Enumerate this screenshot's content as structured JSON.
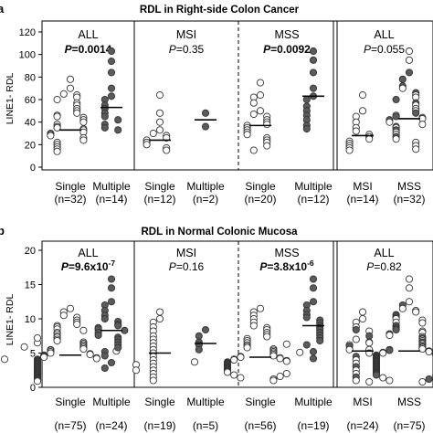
{
  "chart_data": [
    {
      "type": "scatter",
      "panel_label": "a",
      "title": "RDL in Right-side Colon Cancer",
      "ylabel": "LINE1- RDL",
      "ylim": [
        0,
        120
      ],
      "yticks": [
        0,
        20,
        40,
        60,
        80,
        100,
        120
      ],
      "groups": [
        {
          "name": "ALL",
          "p_text": "P=0.0014",
          "p_bold": true,
          "columns": [
            {
              "label": "Single",
              "n": "(n=32)",
              "fill": "white",
              "median": 33,
              "values": [
                78,
                70,
                65,
                64,
                62,
                60,
                57,
                55,
                52,
                50,
                48,
                46,
                45,
                44,
                42,
                40,
                38,
                36,
                35,
                34,
                33,
                31,
                30,
                29,
                28,
                26,
                24,
                22,
                20,
                18,
                16,
                14
              ]
            },
            {
              "label": "Multiple",
              "n": "(n=14)",
              "fill": "dark",
              "median": 53,
              "values": [
                103,
                94,
                84,
                70,
                63,
                60,
                55,
                52,
                48,
                45,
                42,
                38,
                35,
                33
              ]
            }
          ]
        },
        {
          "name": "MSI",
          "p_text": "P=0.35",
          "p_bold": false,
          "columns": [
            {
              "label": "Single",
              "n": "(n=12)",
              "fill": "white",
              "median": 24,
              "values": [
                64,
                48,
                40,
                33,
                30,
                28,
                26,
                24,
                22,
                20,
                17,
                15
              ]
            },
            {
              "label": "Multiple",
              "n": "(n=2)",
              "fill": "dark",
              "median": 42,
              "values": [
                48,
                36
              ]
            }
          ]
        },
        {
          "name": "MSS",
          "p_text": "P=0.0092",
          "p_bold": true,
          "columns": [
            {
              "label": "Single",
              "n": "(n=20)",
              "fill": "white",
              "median": 37,
              "values": [
                75,
                64,
                62,
                57,
                50,
                47,
                45,
                42,
                40,
                38,
                37,
                35,
                33,
                31,
                29,
                26,
                24,
                22,
                19,
                15
              ]
            },
            {
              "label": "Multiple",
              "n": "(n=12)",
              "fill": "dark",
              "median": 63,
              "values": [
                103,
                95,
                84,
                70,
                63,
                60,
                54,
                50,
                46,
                42,
                37,
                34
              ]
            }
          ]
        },
        {
          "name": "ALL",
          "p_text": "P=0.055",
          "p_bold": false,
          "columns": [
            {
              "label": "MSI",
              "n": "(n=14)",
              "fill": "white",
              "median": 28,
              "values": [
                64,
                50,
                45,
                40,
                35,
                32,
                29,
                27,
                25,
                23,
                21,
                19,
                17,
                15
              ]
            },
            {
              "label": "MSS",
              "n": "(n=32)",
              "fill": "mixed",
              "median": 43,
              "values": [
                103,
                95,
                84,
                78,
                72,
                70,
                66,
                64,
                62,
                60,
                57,
                55,
                52,
                50,
                48,
                46,
                45,
                44,
                43,
                42,
                40,
                38,
                36,
                35,
                33,
                31,
                29,
                27,
                25,
                22,
                19,
                16
              ]
            }
          ]
        }
      ]
    },
    {
      "type": "scatter",
      "panel_label": "b",
      "title": "RDL in Normal Colonic Mucosa",
      "ylabel": "LINE1- RDL",
      "ylim": [
        0,
        20
      ],
      "yticks": [
        0,
        5,
        10,
        15,
        20
      ],
      "groups": [
        {
          "name": "ALL",
          "p_text": "P=9.6x10",
          "p_exp": "-7",
          "p_bold": true,
          "columns": [
            {
              "label": "Single",
              "n": "(n=75)",
              "fill": "white",
              "median": 4.7,
              "values": [
                11.5,
                11,
                10.5,
                10.2,
                9.8,
                9.5,
                9.2,
                9,
                8.8,
                8.5,
                8.3,
                8,
                7.8,
                7.5,
                7.3,
                7,
                6.8,
                6.6,
                6.4,
                6.2,
                6,
                5.8,
                5.6,
                5.5,
                5.4,
                5.2,
                5,
                4.9,
                4.8,
                4.7,
                4.6,
                4.5,
                4.4,
                4.3,
                4.2,
                4.1,
                4,
                3.9,
                3.8,
                3.7,
                3.6,
                3.5,
                3.4,
                3.3,
                3.2,
                3.1,
                3,
                2.9,
                2.8,
                2.7,
                2.6,
                2.5,
                2.4,
                2.3,
                2.2,
                2.1,
                2,
                1.9,
                1.8,
                1.7,
                1.6,
                1.5,
                1.4,
                1.3,
                1.2,
                1.1,
                1,
                0.9,
                5.3,
                4.1,
                6.5,
                3.3,
                2.5,
                7.2,
                5.9
              ]
            },
            {
              "label": "Multiple",
              "n": "(n=24)",
              "fill": "dark",
              "median": 8.3,
              "values": [
                15.8,
                14.5,
                12.5,
                12,
                11.2,
                10.5,
                10,
                9.6,
                9.2,
                9,
                8.7,
                8.5,
                8.3,
                8,
                7.6,
                7.3,
                7,
                6.6,
                6.2,
                5.8,
                5.2,
                4.6,
                3.6,
                2.8
              ]
            }
          ]
        },
        {
          "name": "MSI",
          "p_text": "P=0.16",
          "p_bold": false,
          "columns": [
            {
              "label": "Single",
              "n": "(n=19)",
              "fill": "white",
              "median": 5,
              "values": [
                11,
                10,
                9.5,
                8.8,
                8.2,
                7.5,
                7,
                6.5,
                6,
                5.5,
                5,
                4.5,
                4,
                3.5,
                3,
                2.5,
                2,
                1.5,
                1
              ]
            },
            {
              "label": "Multiple",
              "n": "(n=5)",
              "fill": "dark",
              "median": 6.4,
              "values": [
                8.4,
                7.5,
                6.6,
                6.2,
                5.5
              ]
            }
          ]
        },
        {
          "name": "MSS",
          "p_text": "P=3.8x10",
          "p_exp": "-6",
          "p_bold": true,
          "columns": [
            {
              "label": "Single",
              "n": "(n=56)",
              "fill": "white",
              "median": 4.4,
              "values": [
                11.5,
                11,
                10.5,
                10,
                9.5,
                9,
                8.7,
                8.4,
                8,
                7.7,
                7.4,
                7.1,
                6.8,
                6.5,
                6.2,
                6,
                5.8,
                5.6,
                5.4,
                5.2,
                5,
                4.8,
                4.6,
                4.5,
                4.4,
                4.3,
                4.2,
                4.1,
                4,
                3.9,
                3.8,
                3.7,
                3.6,
                3.5,
                3.4,
                3.3,
                3.2,
                3.1,
                3,
                2.9,
                2.8,
                2.7,
                2.6,
                2.5,
                2.4,
                2.3,
                2.2,
                2,
                1.8,
                1.6,
                1.4,
                1.2,
                1,
                5.1,
                3.7,
                6.3
              ]
            },
            {
              "label": "Multiple",
              "n": "(n=19)",
              "fill": "dark",
              "median": 9,
              "values": [
                15.8,
                14.5,
                12.5,
                12,
                11.2,
                10.6,
                10.2,
                9.8,
                9.4,
                9,
                8.7,
                8.4,
                8,
                7.6,
                7.2,
                6.8,
                6.2,
                5.2,
                4.2
              ]
            }
          ]
        },
        {
          "name": "ALL",
          "p_text": "P=0.82",
          "p_bold": false,
          "columns": [
            {
              "label": "MSI",
              "n": "(n=24)",
              "fill": "mixed",
              "median": 5.3,
              "values": [
                11,
                10,
                9.5,
                8.8,
                8.4,
                8.2,
                7.5,
                7,
                6.6,
                6.5,
                6.2,
                6,
                5.5,
                5.5,
                5,
                4.5,
                4,
                3.5,
                3,
                2.5,
                2,
                1.5,
                1,
                0.8
              ]
            },
            {
              "label": "MSS",
              "n": "(n=75)",
              "fill": "mixed",
              "median": 5.3,
              "values": [
                15.8,
                14.5,
                12.5,
                12,
                11.5,
                11.2,
                11,
                10.6,
                10.5,
                10.2,
                10,
                9.8,
                9.5,
                9.4,
                9,
                8.7,
                8.5,
                8.4,
                8.2,
                8,
                7.8,
                7.6,
                7.4,
                7.2,
                7,
                6.8,
                6.6,
                6.4,
                6.2,
                6,
                5.8,
                5.6,
                5.5,
                5.4,
                5.3,
                5.2,
                5.1,
                5,
                4.9,
                4.8,
                4.7,
                4.6,
                4.5,
                4.4,
                4.3,
                4.2,
                4.1,
                4,
                3.9,
                3.8,
                3.7,
                3.6,
                3.5,
                3.4,
                3.3,
                3.2,
                3.1,
                3,
                2.9,
                2.8,
                2.7,
                2.6,
                2.5,
                2.4,
                2.3,
                2.2,
                2.1,
                2,
                1.9,
                1.8,
                1.6,
                1.4,
                1.2,
                1,
                0.8
              ]
            }
          ]
        }
      ]
    }
  ]
}
